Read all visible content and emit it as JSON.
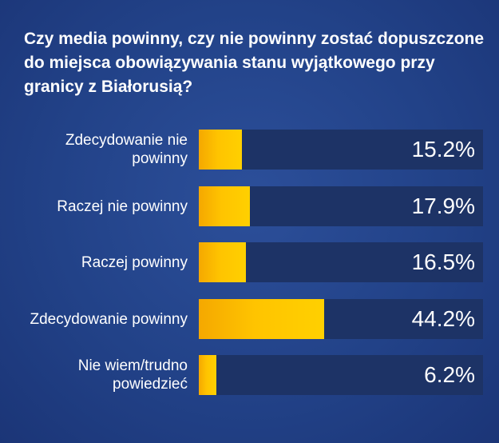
{
  "title": "Czy media powinny, czy nie powinny zostać dopuszczone do miejsca obowiązywania stanu wyjątkowego przy granicy z Białorusią?",
  "colors": {
    "background": "#224288",
    "track": "#1d3366",
    "bar": "#ffc400",
    "text": "#ffffff"
  },
  "chart_data": {
    "type": "bar",
    "orientation": "horizontal",
    "title": "Czy media powinny, czy nie powinny zostać dopuszczone do miejsca obowiązywania stanu wyjątkowego przy granicy z Białorusią?",
    "categories": [
      "Zdecydowanie nie powinny",
      "Raczej nie powinny",
      "Raczej powinny",
      "Zdecydowanie powinny",
      "Nie wiem/trudno powiedzieć"
    ],
    "values": [
      15.2,
      17.9,
      16.5,
      44.2,
      6.2
    ],
    "value_labels": [
      "15.2%",
      "17.9%",
      "16.5%",
      "44.2%",
      "6.2%"
    ],
    "unit": "%",
    "xlim": [
      0,
      100
    ],
    "grid": false,
    "legend": "none"
  }
}
